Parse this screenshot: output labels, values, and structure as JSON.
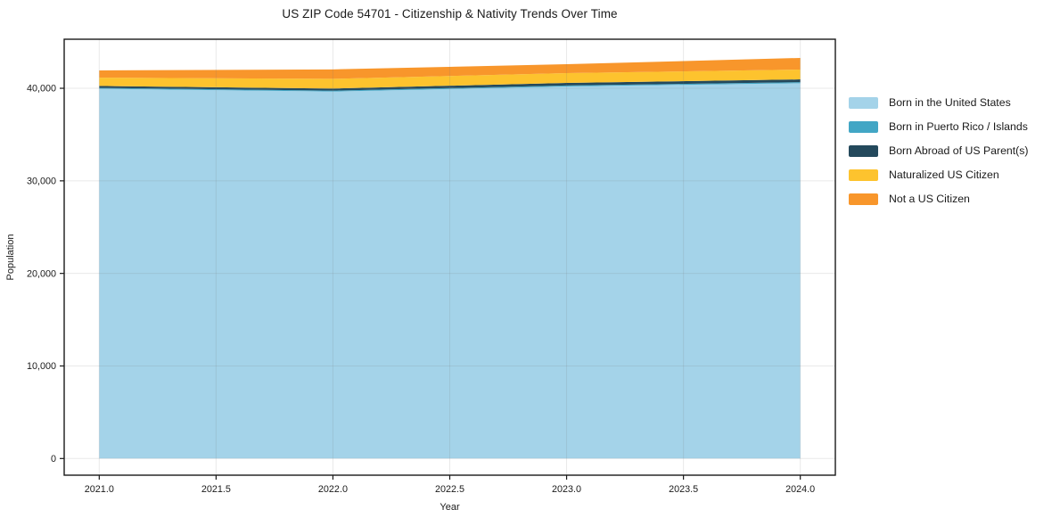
{
  "chart_data": {
    "type": "area",
    "stacked": true,
    "title": "US ZIP Code 54701 - Citizenship & Nativity Trends Over Time",
    "xlabel": "Year",
    "ylabel": "Population",
    "x": [
      2021,
      2022,
      2023,
      2024
    ],
    "series": [
      {
        "name": "Born in the United States",
        "color": "#a4d3e9",
        "values": [
          39950,
          39650,
          40200,
          40550
        ]
      },
      {
        "name": "Born in Puerto Rico / Islands",
        "color": "#42a6c5",
        "values": [
          100,
          100,
          100,
          110
        ]
      },
      {
        "name": "Born Abroad of US Parent(s)",
        "color": "#24495c",
        "values": [
          200,
          220,
          280,
          300
        ]
      },
      {
        "name": "Naturalized US Citizen",
        "color": "#fdc32e",
        "values": [
          900,
          1050,
          1060,
          1060
        ]
      },
      {
        "name": "Not a US Citizen",
        "color": "#f8962b",
        "values": [
          780,
          1020,
          960,
          1260
        ]
      }
    ],
    "xlim": [
      2020.85,
      2024.15
    ],
    "ylim": [
      -1800,
      45300
    ],
    "x_ticks": [
      {
        "value": 2021.0,
        "label": "2021.0"
      },
      {
        "value": 2021.5,
        "label": "2021.5"
      },
      {
        "value": 2022.0,
        "label": "2022.0"
      },
      {
        "value": 2022.5,
        "label": "2022.5"
      },
      {
        "value": 2023.0,
        "label": "2023.0"
      },
      {
        "value": 2023.5,
        "label": "2023.5"
      },
      {
        "value": 2024.0,
        "label": "2024.0"
      }
    ],
    "y_ticks": [
      {
        "value": 0,
        "label": "0"
      },
      {
        "value": 10000,
        "label": "10,000"
      },
      {
        "value": 20000,
        "label": "20,000"
      },
      {
        "value": 30000,
        "label": "30,000"
      },
      {
        "value": 40000,
        "label": "40,000"
      }
    ],
    "grid": true,
    "legend_position": "right",
    "frame_color": "#1a1a1a",
    "grid_color": "rgba(120,120,120,0.16)"
  }
}
